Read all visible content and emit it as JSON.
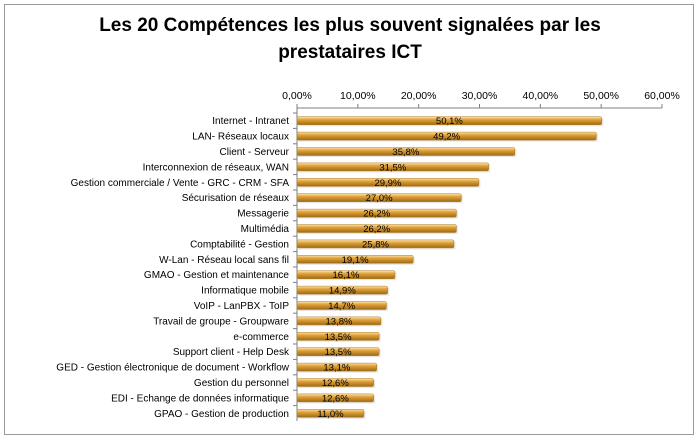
{
  "chart_data": {
    "type": "bar",
    "orientation": "horizontal",
    "title_lines": [
      "Les 20 Compétences les plus souvent signalées par les",
      "prestataires ICT"
    ],
    "x_axis": {
      "position": "top",
      "min": 0,
      "max": 60,
      "tick_labels": [
        "0,00%",
        "10,00%",
        "20,00%",
        "30,00%",
        "40,00%",
        "50,00%",
        "60,00%"
      ],
      "grid": false
    },
    "categories": [
      "Internet - Intranet",
      "LAN- Réseaux locaux",
      "Client - Serveur",
      "Interconnexion de réseaux, WAN",
      "Gestion commerciale  / Vente - GRC - CRM - SFA",
      "Sécurisation de réseaux",
      "Messagerie",
      "Multimédia",
      "Comptabilité - Gestion",
      "W-Lan - Réseau local sans fil",
      "GMAO - Gestion et maintenance",
      "Informatique mobile",
      "VoIP - LanPBX - ToIP",
      "Travail de groupe - Groupware",
      "e-commerce",
      "Support client - Help Desk",
      "GED - Gestion électronique de document - Workflow",
      "Gestion du personnel",
      "EDI - Echange de données informatique",
      "GPAO - Gestion de production"
    ],
    "values": [
      50.1,
      49.2,
      35.8,
      31.5,
      29.9,
      27.0,
      26.2,
      26.2,
      25.8,
      19.1,
      16.1,
      14.9,
      14.7,
      13.8,
      13.5,
      13.5,
      13.1,
      12.6,
      12.6,
      11.0
    ],
    "data_labels": [
      "50,1%",
      "49,2%",
      "35,8%",
      "31,5%",
      "29,9%",
      "27,0%",
      "26,2%",
      "26,2%",
      "25,8%",
      "19,1%",
      "16,1%",
      "14,9%",
      "14,7%",
      "13,8%",
      "13,5%",
      "13,5%",
      "13,1%",
      "12,6%",
      "12,6%",
      "11,0%"
    ],
    "bar_color": "#e3a33a",
    "bar_highlight": "#fbe6b4",
    "bar_shadow": "#9c6a14"
  }
}
